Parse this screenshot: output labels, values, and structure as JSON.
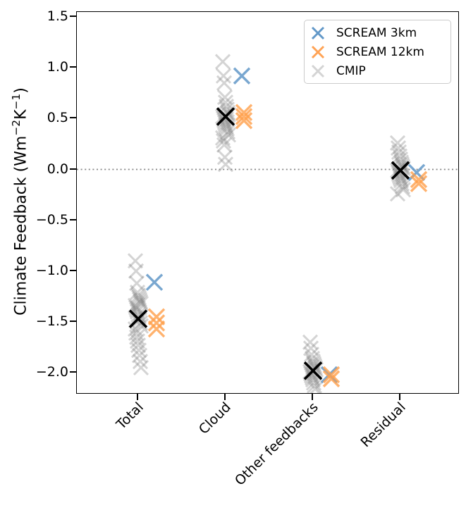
{
  "figure": {
    "ylabel": "Climate Feedback (Wm⁻²K⁻¹)",
    "ylabel_parts": [
      {
        "text": "Climate Feedback (Wm"
      },
      {
        "sup": "−2"
      },
      {
        "text": "K"
      },
      {
        "sup": "−1"
      },
      {
        "text": ")"
      }
    ],
    "background_color": "#ffffff"
  },
  "chart_data": {
    "type": "scatter",
    "marker": "x",
    "categories": [
      "Total",
      "Cloud",
      "Other feedbacks",
      "Residual"
    ],
    "x_tick_rotation": 45,
    "y_ticks": [
      "1.5",
      "1.0",
      "0.5",
      "0.0",
      "−0.5",
      "−1.0",
      "−1.5",
      "−2.0"
    ],
    "y_tick_values": [
      1.5,
      1.0,
      0.5,
      0.0,
      -0.5,
      -1.0,
      -1.5,
      -2.0
    ],
    "ylim": [
      -2.2,
      1.549
    ],
    "grid": false,
    "zero_line": {
      "value": 0.0,
      "style": "dotted",
      "color": "#858585"
    },
    "series": [
      {
        "name": "SCREAM 3km",
        "color": "#6298c8",
        "opacity": 0.85,
        "values": {
          "Total": [
            -1.11
          ],
          "Cloud": [
            0.92
          ],
          "Other feedbacks": [
            -2.02
          ],
          "Residual": [
            -0.03
          ]
        }
      },
      {
        "name": "SCREAM 12km",
        "color": "#ff9f4a",
        "opacity": 0.8,
        "values": {
          "Total": [
            -1.45,
            -1.51,
            -1.57
          ],
          "Cloud": [
            0.56,
            0.52,
            0.48
          ],
          "Other feedbacks": [
            -2.02,
            -2.06
          ],
          "Residual": [
            -0.1,
            -0.14
          ]
        }
      },
      {
        "name": "CMIP",
        "color": "#7a7a7a",
        "opacity": 0.32,
        "legend_color": "#d4d4d4",
        "values": {
          "Total": [
            -0.9,
            -1.0,
            -1.12,
            -1.21,
            -1.24,
            -1.26,
            -1.28,
            -1.3,
            -1.32,
            -1.34,
            -1.36,
            -1.38,
            -1.4,
            -1.43,
            -1.45,
            -1.48,
            -1.51,
            -1.54,
            -1.57,
            -1.61,
            -1.65,
            -1.69,
            -1.73,
            -1.78,
            -1.83,
            -1.89,
            -1.95
          ],
          "Cloud": [
            1.06,
            0.92,
            0.85,
            0.71,
            0.66,
            0.62,
            0.59,
            0.56,
            0.54,
            0.52,
            0.5,
            0.48,
            0.46,
            0.44,
            0.42,
            0.4,
            0.37,
            0.34,
            0.31,
            0.28,
            0.24,
            0.12,
            0.05
          ],
          "Other feedbacks": [
            -1.7,
            -1.76,
            -1.82,
            -1.86,
            -1.89,
            -1.91,
            -1.93,
            -1.95,
            -1.97,
            -1.99,
            -2.01,
            -2.03,
            -2.05,
            -2.07,
            -2.1,
            -2.13,
            -2.16
          ],
          "Residual": [
            0.26,
            0.21,
            0.17,
            0.13,
            0.1,
            0.07,
            0.05,
            0.03,
            0.01,
            -0.01,
            -0.03,
            -0.05,
            -0.07,
            -0.09,
            -0.11,
            -0.14,
            -0.17,
            -0.2,
            -0.24
          ]
        }
      },
      {
        "name": "black mean ×",
        "color": "#000000",
        "opacity": 1.0,
        "values": {
          "Total": [
            -1.47
          ],
          "Cloud": [
            0.52
          ],
          "Other feedbacks": [
            -1.98
          ],
          "Residual": [
            -0.01
          ]
        }
      }
    ],
    "legend": {
      "position": "top-right",
      "items": [
        {
          "label": "SCREAM 3km",
          "color": "#6298c8"
        },
        {
          "label": "SCREAM 12km",
          "color": "#ffa355"
        },
        {
          "label": "CMIP",
          "color": "#d4d4d4"
        }
      ]
    }
  }
}
